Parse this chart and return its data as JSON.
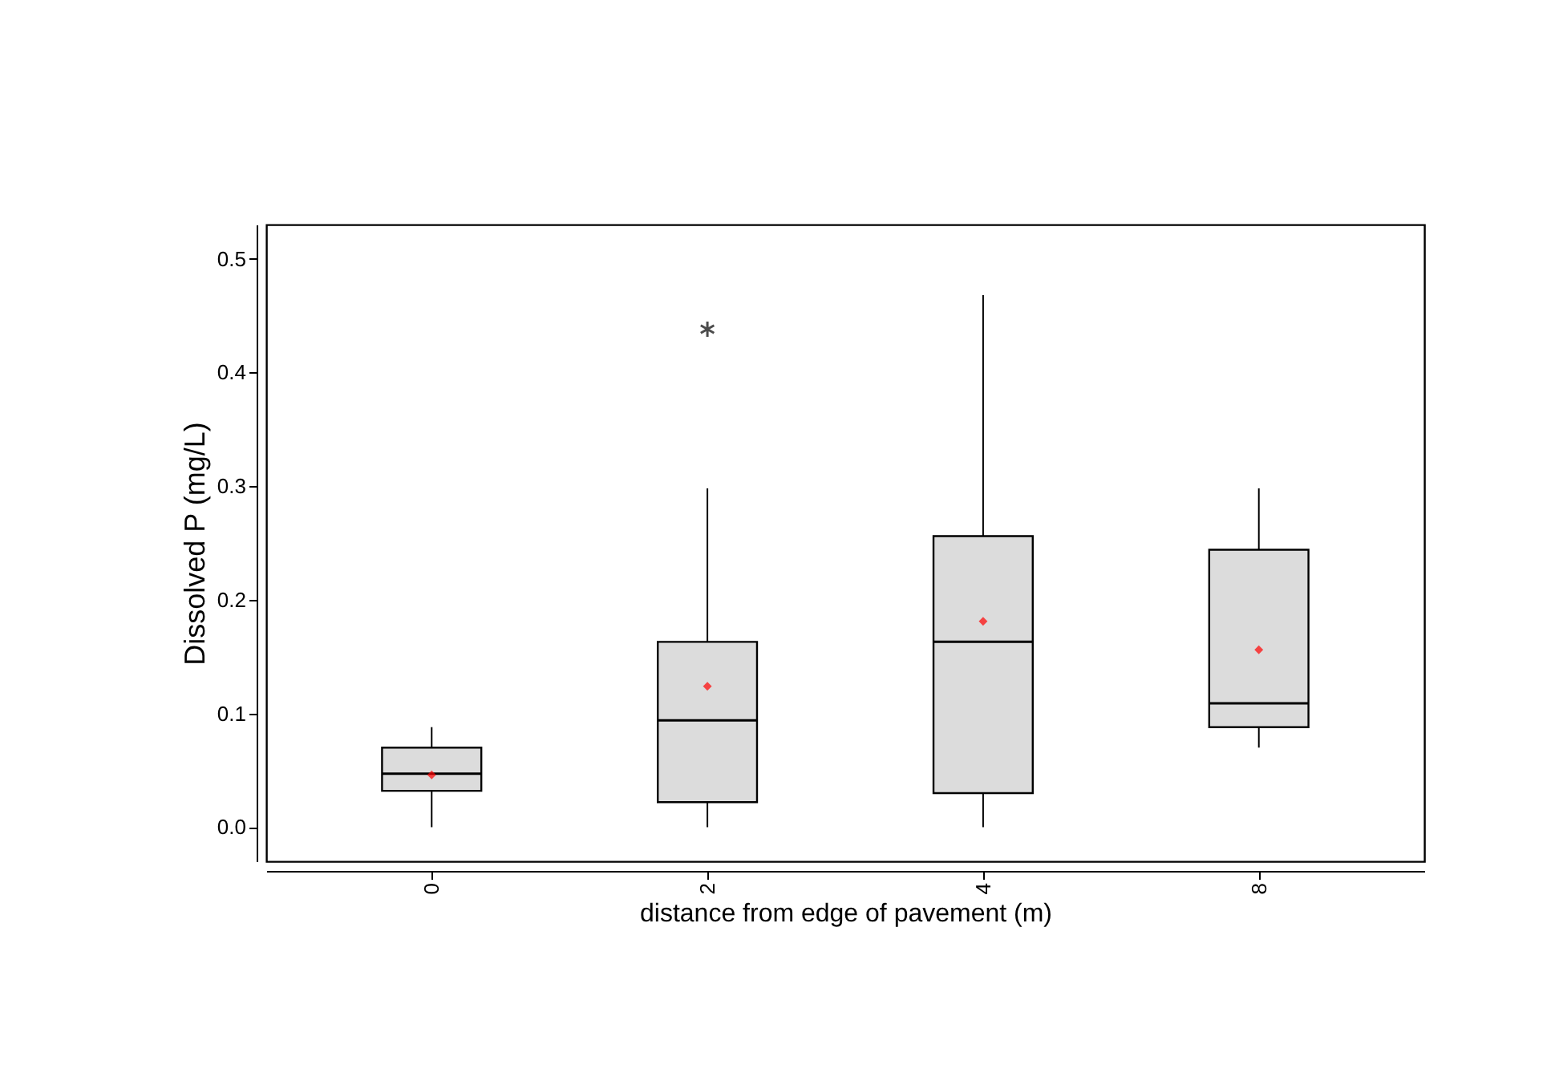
{
  "chart_data": {
    "type": "box",
    "xlabel": "distance from edge of pavement (m)",
    "ylabel": "Dissolved P (mg/L)",
    "categories": [
      "0",
      "2",
      "4",
      "8"
    ],
    "ylim": [
      -0.03,
      0.53
    ],
    "yticks": [
      {
        "value": 0,
        "label": "0.0"
      },
      0.1,
      0.2,
      0.3,
      0.4,
      0.5
    ],
    "grid": false,
    "series": [
      {
        "color": "#dcdcdc",
        "boxes": [
          {
            "low": 0.0,
            "q1": 0.032,
            "median": 0.047,
            "q3": 0.07,
            "high": 0.088,
            "mean": 0.046
          },
          {
            "low": 0.0,
            "q1": 0.022,
            "median": 0.094,
            "q3": 0.163,
            "high": 0.298,
            "mean": 0.124,
            "outliers": [
              0.438
            ]
          },
          {
            "low": 0.0,
            "q1": 0.03,
            "median": 0.163,
            "q3": 0.256,
            "high": 0.468,
            "mean": 0.181
          },
          {
            "low": 0.07,
            "q1": 0.088,
            "median": 0.109,
            "q3": 0.244,
            "high": 0.298,
            "mean": 0.156
          }
        ]
      }
    ]
  }
}
